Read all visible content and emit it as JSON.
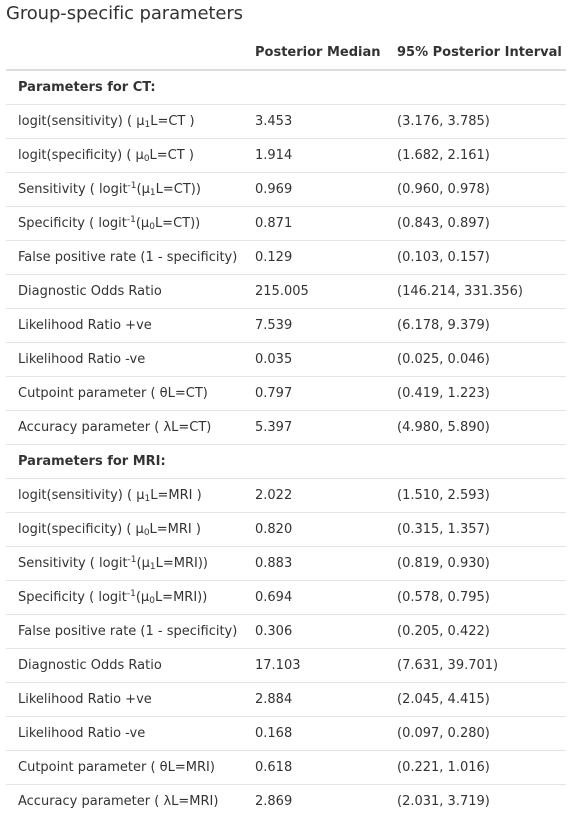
{
  "title": "Group-specific parameters",
  "columns": {
    "param": "",
    "median": "Posterior Median",
    "interval": "95% Posterior Interval"
  },
  "groups": [
    {
      "header": "Parameters for CT:",
      "rows": [
        {
          "label_pre": "logit(sensitivity) ( μ",
          "label_sub": "1",
          "label_post": "L=CT )",
          "median": "3.453",
          "interval": "(3.176, 3.785)"
        },
        {
          "label_pre": "logit(specificity) ( μ",
          "label_sub": "0",
          "label_post": "L=CT )",
          "median": "1.914",
          "interval": "(1.682, 2.161)"
        },
        {
          "label_pre": "Sensitivity ( logit",
          "label_sup": "-1",
          "label_mid": "(μ",
          "label_sub": "1",
          "label_post": "L=CT))",
          "median": "0.969",
          "interval": "(0.960, 0.978)"
        },
        {
          "label_pre": "Specificity ( logit",
          "label_sup": "-1",
          "label_mid": "(μ",
          "label_sub": "0",
          "label_post": "L=CT))",
          "median": "0.871",
          "interval": "(0.843, 0.897)"
        },
        {
          "label_pre": "False positive rate (1 - specificity)",
          "median": "0.129",
          "interval": "(0.103, 0.157)"
        },
        {
          "label_pre": "Diagnostic Odds Ratio",
          "median": "215.005",
          "interval": "(146.214, 331.356)"
        },
        {
          "label_pre": "Likelihood Ratio +ve",
          "median": "7.539",
          "interval": "(6.178, 9.379)"
        },
        {
          "label_pre": "Likelihood Ratio -ve",
          "median": "0.035",
          "interval": "(0.025, 0.046)"
        },
        {
          "label_pre": "Cutpoint parameter ( θL=CT)",
          "median": "0.797",
          "interval": "(0.419, 1.223)"
        },
        {
          "label_pre": "Accuracy parameter ( λL=CT)",
          "median": "5.397",
          "interval": "(4.980, 5.890)"
        }
      ]
    },
    {
      "header": "Parameters for MRI:",
      "rows": [
        {
          "label_pre": "logit(sensitivity) ( μ",
          "label_sub": "1",
          "label_post": "L=MRI )",
          "median": "2.022",
          "interval": "(1.510, 2.593)"
        },
        {
          "label_pre": "logit(specificity) ( μ",
          "label_sub": "0",
          "label_post": "L=MRI )",
          "median": "0.820",
          "interval": "(0.315, 1.357)"
        },
        {
          "label_pre": "Sensitivity ( logit",
          "label_sup": "-1",
          "label_mid": "(μ",
          "label_sub": "1",
          "label_post": "L=MRI))",
          "median": "0.883",
          "interval": "(0.819, 0.930)"
        },
        {
          "label_pre": "Specificity ( logit",
          "label_sup": "-1",
          "label_mid": "(μ",
          "label_sub": "0",
          "label_post": "L=MRI))",
          "median": "0.694",
          "interval": "(0.578, 0.795)"
        },
        {
          "label_pre": "False positive rate (1 - specificity)",
          "median": "0.306",
          "interval": "(0.205, 0.422)"
        },
        {
          "label_pre": "Diagnostic Odds Ratio",
          "median": "17.103",
          "interval": "(7.631, 39.701)"
        },
        {
          "label_pre": "Likelihood Ratio +ve",
          "median": "2.884",
          "interval": "(2.045, 4.415)"
        },
        {
          "label_pre": "Likelihood Ratio -ve",
          "median": "0.168",
          "interval": "(0.097, 0.280)"
        },
        {
          "label_pre": "Cutpoint parameter ( θL=MRI)",
          "median": "0.618",
          "interval": "(0.221, 1.016)"
        },
        {
          "label_pre": "Accuracy parameter ( λL=MRI)",
          "median": "2.869",
          "interval": "(2.031, 3.719)"
        }
      ]
    }
  ]
}
